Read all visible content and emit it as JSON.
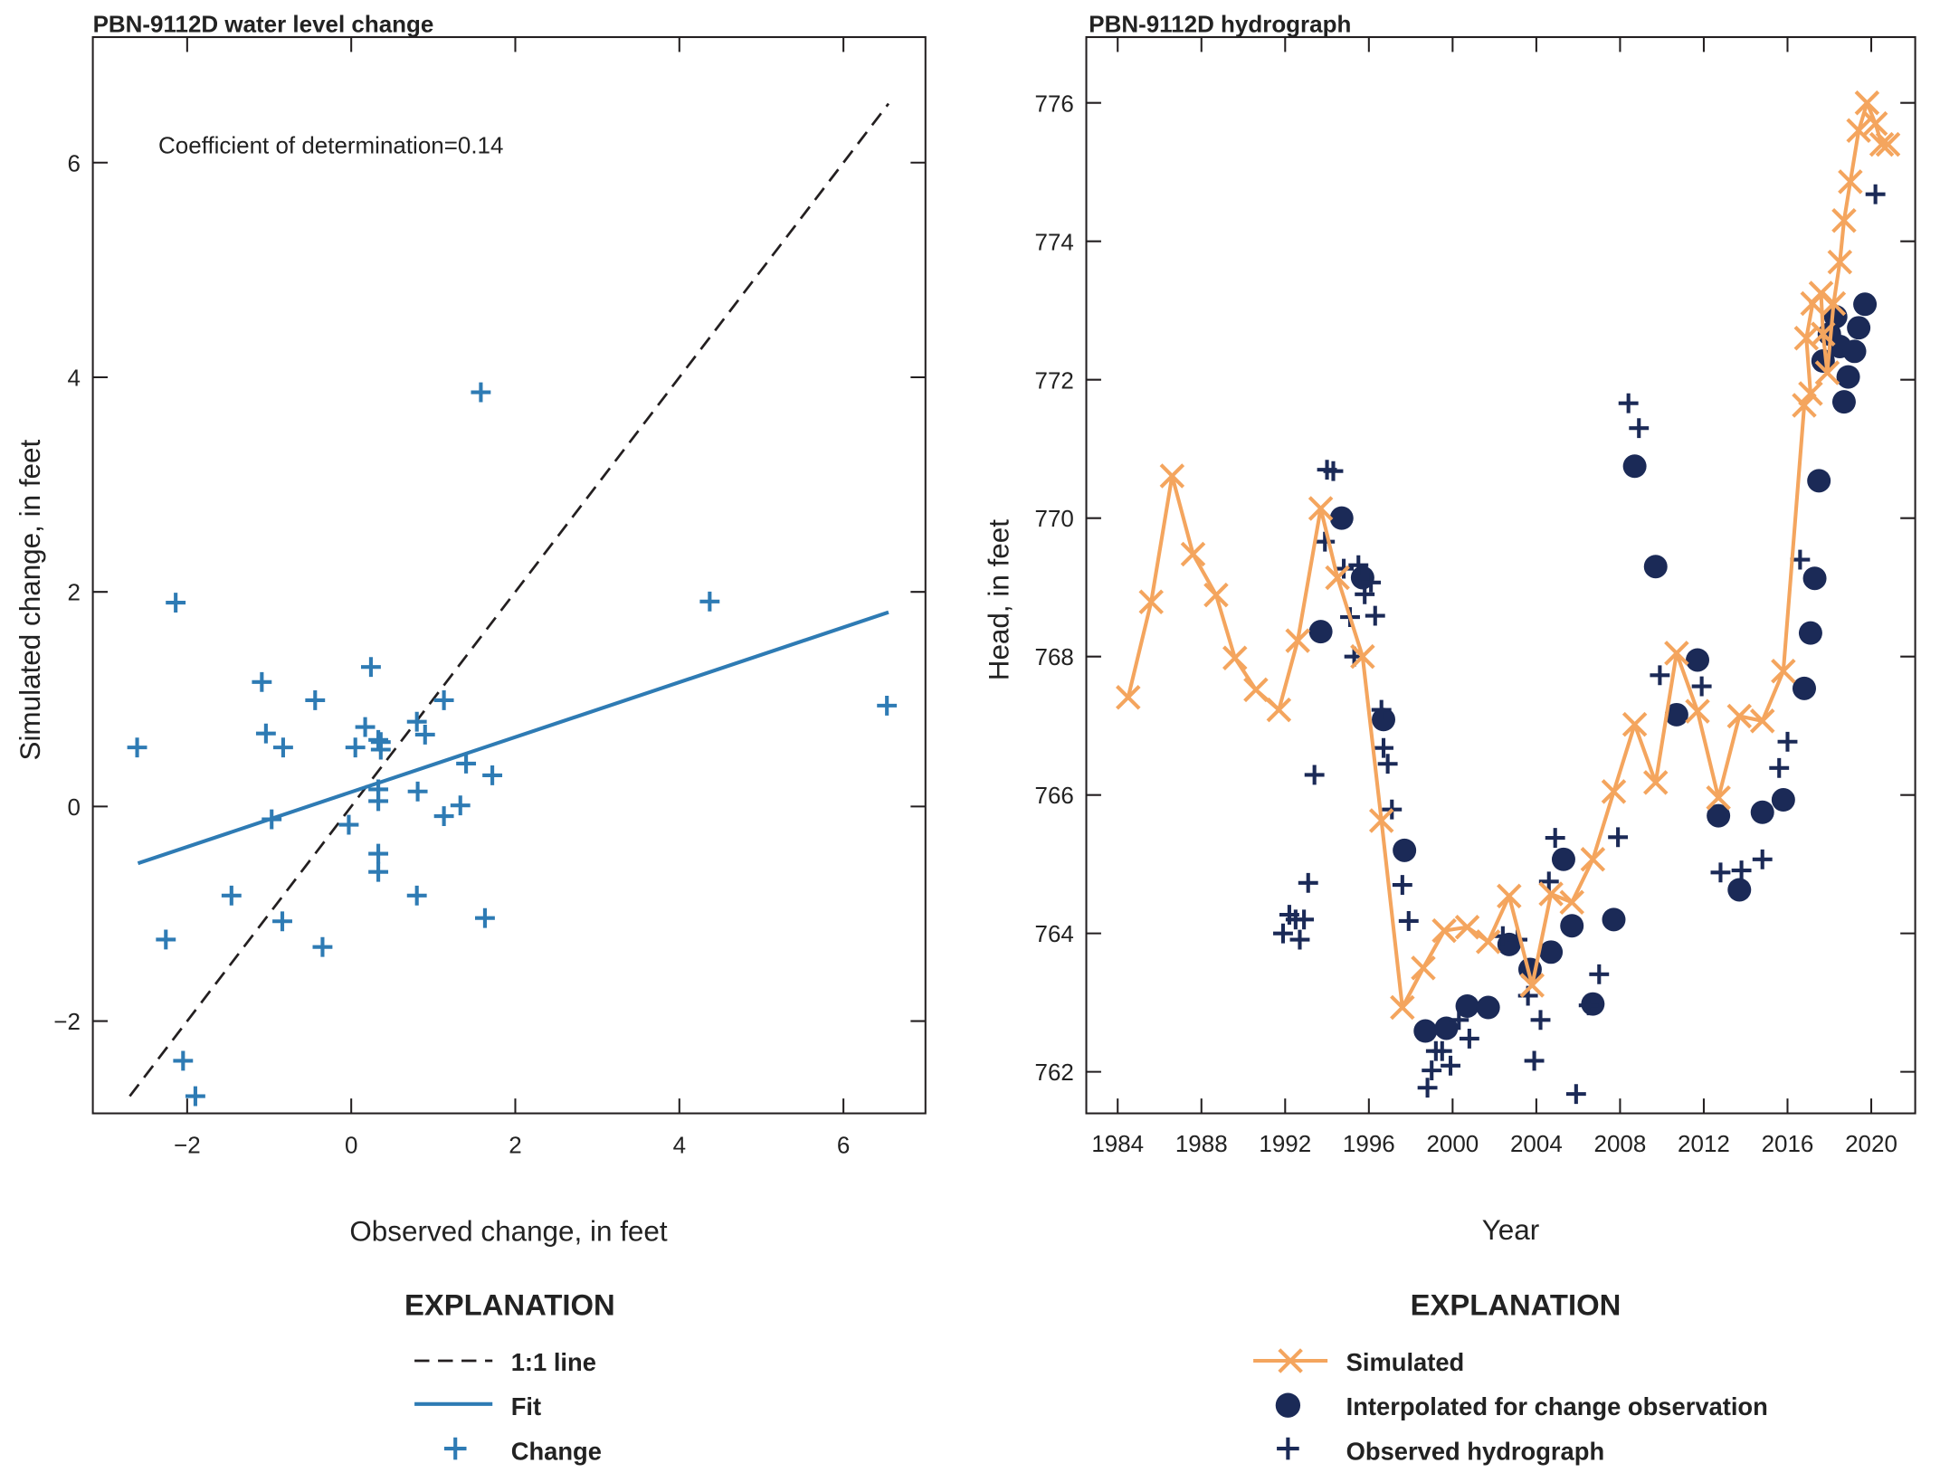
{
  "colors": {
    "change": "#2e7bb4",
    "simulated": "#f4a55e",
    "navy": "#1b2a57",
    "axis": "#231f20"
  },
  "chart_data": [
    {
      "type": "scatter",
      "title": "PBN-9112D water level change",
      "xlabel": "Observed change, in feet",
      "ylabel": "Simulated change, in feet",
      "annotation": "Coefficient of determination=0.14",
      "xlim": [
        -3.15,
        7.0
      ],
      "ylim": [
        -2.86,
        7.17
      ],
      "xticks": [
        -2,
        0,
        2,
        4,
        6
      ],
      "yticks": [
        -2,
        0,
        2,
        4,
        6
      ],
      "xtick_labels": [
        "−2",
        "0",
        "2",
        "4",
        "6"
      ],
      "ytick_labels": [
        "−2",
        "0",
        "2",
        "4",
        "6"
      ],
      "one_to_one": {
        "x": [
          -2.7,
          6.55
        ]
      },
      "fit": {
        "x": [
          -2.6,
          6.55
        ],
        "y": [
          -0.53,
          1.81
        ]
      },
      "change": [
        [
          -2.61,
          0.55
        ],
        [
          -2.14,
          1.9
        ],
        [
          -1.09,
          1.16
        ],
        [
          -1.04,
          0.68
        ],
        [
          -0.83,
          0.55
        ],
        [
          -0.97,
          -0.12
        ],
        [
          -1.46,
          -0.83
        ],
        [
          -2.26,
          -1.24
        ],
        [
          -0.84,
          -1.07
        ],
        [
          -0.35,
          -1.31
        ],
        [
          -0.44,
          0.99
        ],
        [
          -2.05,
          -2.37
        ],
        [
          -1.9,
          -2.7
        ],
        [
          0.24,
          1.3
        ],
        [
          0.17,
          0.74
        ],
        [
          0.05,
          0.55
        ],
        [
          0.33,
          0.62
        ],
        [
          0.36,
          0.53
        ],
        [
          0.36,
          0.6
        ],
        [
          0.33,
          0.16
        ],
        [
          0.33,
          0.05
        ],
        [
          0.33,
          -0.44
        ],
        [
          0.33,
          -0.61
        ],
        [
          -0.03,
          -0.17
        ],
        [
          0.8,
          0.79
        ],
        [
          0.9,
          0.67
        ],
        [
          1.13,
          0.99
        ],
        [
          0.81,
          0.14
        ],
        [
          1.13,
          -0.09
        ],
        [
          1.4,
          0.4
        ],
        [
          1.33,
          0.01
        ],
        [
          1.72,
          0.29
        ],
        [
          0.8,
          -0.83
        ],
        [
          1.63,
          -1.04
        ],
        [
          1.58,
          3.86
        ],
        [
          4.37,
          1.91
        ],
        [
          6.53,
          0.94
        ]
      ],
      "legend": {
        "heading": "EXPLANATION",
        "items": [
          "1:1 line",
          "Fit",
          "Change"
        ]
      }
    },
    {
      "type": "line",
      "title": "PBN-9112D hydrograph",
      "xlabel": "Year",
      "ylabel": "Head, in feet",
      "xlim": [
        1982.5,
        2022.1
      ],
      "ylim": [
        761.4,
        776.95
      ],
      "xticks": [
        1984,
        1988,
        1992,
        1996,
        2000,
        2004,
        2008,
        2012,
        2016,
        2020
      ],
      "xtick_labels": [
        "1984",
        "1988",
        "1992",
        "1996",
        "2000",
        "2004",
        "2008",
        "2012",
        "2016",
        "2020"
      ],
      "yticks": [
        762,
        764,
        766,
        768,
        770,
        772,
        774,
        776
      ],
      "ytick_labels": [
        "762",
        "764",
        "766",
        "768",
        "770",
        "772",
        "774",
        "776"
      ],
      "simulated": [
        [
          1984.5,
          767.41
        ],
        [
          1985.6,
          768.79
        ],
        [
          1986.6,
          770.61
        ],
        [
          1987.6,
          769.48
        ],
        [
          1988.7,
          768.89
        ],
        [
          1989.6,
          767.98
        ],
        [
          1990.6,
          767.52
        ],
        [
          1991.7,
          767.23
        ],
        [
          1992.6,
          768.23
        ],
        [
          1993.7,
          770.14
        ],
        [
          1994.5,
          769.14
        ],
        [
          1995.7,
          768.0
        ],
        [
          1996.6,
          765.63
        ],
        [
          1997.6,
          762.93
        ],
        [
          1998.6,
          763.5
        ],
        [
          1999.6,
          764.04
        ],
        [
          2000.7,
          764.09
        ],
        [
          2001.7,
          763.88
        ],
        [
          2002.7,
          764.54
        ],
        [
          2003.8,
          763.25
        ],
        [
          2004.7,
          764.57
        ],
        [
          2005.7,
          764.45
        ],
        [
          2006.7,
          765.07
        ],
        [
          2007.7,
          766.05
        ],
        [
          2008.7,
          767.02
        ],
        [
          2009.7,
          766.18
        ],
        [
          2010.7,
          768.05
        ],
        [
          2011.7,
          767.21
        ],
        [
          2012.7,
          765.96
        ],
        [
          2013.7,
          767.14
        ],
        [
          2014.8,
          767.07
        ],
        [
          2015.8,
          767.79
        ],
        [
          2016.8,
          771.63
        ],
        [
          2017.1,
          771.8
        ],
        [
          2016.9,
          772.6
        ],
        [
          2017.2,
          773.1
        ],
        [
          2017.6,
          773.25
        ],
        [
          2017.7,
          772.66
        ],
        [
          2017.9,
          772.1
        ],
        [
          2018.2,
          773.1
        ],
        [
          2018.5,
          773.7
        ],
        [
          2018.7,
          774.3
        ],
        [
          2019.0,
          774.86
        ],
        [
          2019.4,
          775.6
        ],
        [
          2019.8,
          776.0
        ],
        [
          2020.2,
          775.7
        ],
        [
          2020.5,
          775.4
        ],
        [
          2020.8,
          775.4
        ]
      ],
      "interpolated": [
        [
          1993.7,
          768.36
        ],
        [
          1994.7,
          770.0
        ],
        [
          1995.7,
          769.14
        ],
        [
          1996.7,
          767.09
        ],
        [
          1997.7,
          765.2
        ],
        [
          1998.7,
          762.59
        ],
        [
          1999.7,
          762.63
        ],
        [
          2000.7,
          762.95
        ],
        [
          2001.7,
          762.93
        ],
        [
          2002.7,
          763.84
        ],
        [
          2003.7,
          763.48
        ],
        [
          2004.7,
          763.73
        ],
        [
          2005.3,
          765.07
        ],
        [
          2005.7,
          764.11
        ],
        [
          2006.7,
          762.98
        ],
        [
          2007.7,
          764.2
        ],
        [
          2008.7,
          770.75
        ],
        [
          2009.7,
          769.3
        ],
        [
          2010.7,
          767.16
        ],
        [
          2011.7,
          767.95
        ],
        [
          2012.7,
          765.7
        ],
        [
          2013.7,
          764.63
        ],
        [
          2014.8,
          765.75
        ],
        [
          2015.8,
          765.93
        ],
        [
          2016.8,
          767.54
        ],
        [
          2017.1,
          768.34
        ],
        [
          2017.3,
          769.13
        ],
        [
          2017.5,
          770.54
        ],
        [
          2017.7,
          772.27
        ],
        [
          2018.0,
          772.66
        ],
        [
          2018.3,
          772.91
        ],
        [
          2018.5,
          772.48
        ],
        [
          2018.7,
          771.68
        ],
        [
          2018.9,
          772.04
        ],
        [
          2019.2,
          772.41
        ],
        [
          2019.4,
          772.75
        ],
        [
          2019.7,
          773.09
        ]
      ],
      "observed": [
        [
          1991.9,
          764.0
        ],
        [
          1992.2,
          764.27
        ],
        [
          1992.5,
          764.2
        ],
        [
          1992.7,
          763.91
        ],
        [
          1992.9,
          764.2
        ],
        [
          1993.1,
          764.73
        ],
        [
          1993.4,
          766.29
        ],
        [
          1993.9,
          769.66
        ],
        [
          1994.0,
          770.7
        ],
        [
          1994.3,
          770.68
        ],
        [
          1994.8,
          769.27
        ],
        [
          1995.1,
          768.57
        ],
        [
          1995.3,
          768.0
        ],
        [
          1995.5,
          769.32
        ],
        [
          1995.8,
          768.9
        ],
        [
          1996.1,
          769.07
        ],
        [
          1996.3,
          768.59
        ],
        [
          1996.6,
          767.23
        ],
        [
          1996.7,
          766.68
        ],
        [
          1996.9,
          766.45
        ],
        [
          1997.1,
          765.79
        ],
        [
          1997.6,
          764.7
        ],
        [
          1997.9,
          764.18
        ],
        [
          1998.8,
          761.77
        ],
        [
          1999.0,
          762.02
        ],
        [
          1999.2,
          762.3
        ],
        [
          1999.5,
          762.3
        ],
        [
          1999.9,
          762.09
        ],
        [
          2000.3,
          762.75
        ],
        [
          2000.8,
          762.48
        ],
        [
          2002.4,
          763.96
        ],
        [
          2003.1,
          763.91
        ],
        [
          2003.6,
          763.1
        ],
        [
          2003.9,
          762.16
        ],
        [
          2004.2,
          762.75
        ],
        [
          2004.6,
          764.75
        ],
        [
          2004.9,
          765.38
        ],
        [
          2005.9,
          761.68
        ],
        [
          2006.5,
          762.96
        ],
        [
          2007.0,
          763.41
        ],
        [
          2007.9,
          765.39
        ],
        [
          2008.4,
          771.66
        ],
        [
          2008.9,
          771.3
        ],
        [
          2009.9,
          767.73
        ],
        [
          2011.9,
          767.57
        ],
        [
          2012.8,
          764.88
        ],
        [
          2013.8,
          764.91
        ],
        [
          2014.8,
          765.07
        ],
        [
          2015.6,
          766.39
        ],
        [
          2016.0,
          766.77
        ],
        [
          2016.6,
          769.4
        ],
        [
          2020.2,
          774.68
        ]
      ],
      "legend": {
        "heading": "EXPLANATION",
        "items": [
          "Simulated",
          "Interpolated for change observation",
          "Observed hydrograph"
        ]
      }
    }
  ]
}
